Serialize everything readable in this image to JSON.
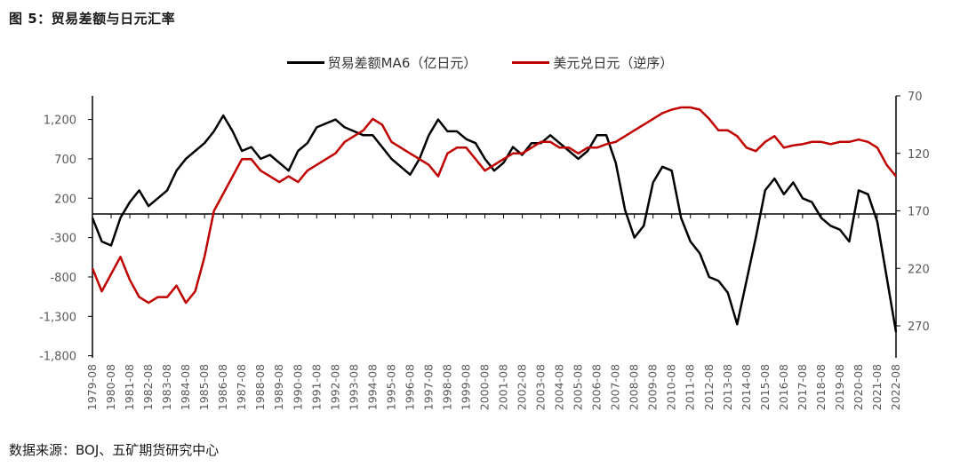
{
  "title": "图 5：贸易差额与日元汇率",
  "source": "数据来源：BOJ、五矿期货研究中心",
  "legend": [
    {
      "label": "贸易差额MA6（亿日元）",
      "color": "#000000"
    },
    {
      "label": "美元兑日元（逆序）",
      "color": "#c00000"
    }
  ],
  "chart_data": {
    "type": "line",
    "title": "图 5：贸易差额与日元汇率",
    "xlabel": "",
    "ylabel_left": "贸易差额MA6（亿日元）",
    "ylabel_right": "美元兑日元（逆序）",
    "left_axis": {
      "ticks": [
        1200,
        700,
        200,
        -300,
        -800,
        -1300,
        -1800
      ],
      "tick_labels": [
        "1,200",
        "700",
        "200",
        "-300",
        "-800",
        "-1,300",
        "-1,800"
      ],
      "range": [
        -1800,
        1500
      ]
    },
    "right_axis": {
      "ticks": [
        70,
        120,
        170,
        220,
        270
      ],
      "tick_labels": [
        "70",
        "120",
        "170",
        "220",
        "270"
      ],
      "range": [
        70,
        300
      ],
      "inverted": true
    },
    "categories": [
      "1979-08",
      "1980-08",
      "1981-08",
      "1982-08",
      "1983-08",
      "1984-08",
      "1985-08",
      "1986-08",
      "1987-08",
      "1988-08",
      "1989-08",
      "1990-08",
      "1991-08",
      "1992-08",
      "1993-08",
      "1994-08",
      "1995-08",
      "1996-08",
      "1997-08",
      "1998-08",
      "1999-08",
      "2000-08",
      "2001-08",
      "2002-08",
      "2003-08",
      "2004-08",
      "2005-08",
      "2006-08",
      "2007-08",
      "2008-08",
      "2009-08",
      "2010-08",
      "2011-08",
      "2012-08",
      "2013-08",
      "2014-08",
      "2015-08",
      "2016-08",
      "2017-08",
      "2018-08",
      "2019-08",
      "2020-08",
      "2021-08",
      "2022-08"
    ],
    "x": [
      1979.6,
      1980.1,
      1980.6,
      1981.1,
      1981.6,
      1982.1,
      1982.6,
      1983.1,
      1983.6,
      1984.1,
      1984.6,
      1985.1,
      1985.6,
      1986.1,
      1986.6,
      1987.1,
      1987.6,
      1988.1,
      1988.6,
      1989.1,
      1989.6,
      1990.1,
      1990.6,
      1991.1,
      1991.6,
      1992.1,
      1992.6,
      1993.1,
      1993.6,
      1994.1,
      1994.6,
      1995.1,
      1995.6,
      1996.1,
      1996.6,
      1997.1,
      1997.6,
      1998.1,
      1998.6,
      1999.1,
      1999.6,
      2000.1,
      2000.6,
      2001.1,
      2001.6,
      2002.1,
      2002.6,
      2003.1,
      2003.6,
      2004.1,
      2004.6,
      2005.1,
      2005.6,
      2006.1,
      2006.6,
      2007.1,
      2007.6,
      2008.1,
      2008.6,
      2009.1,
      2009.6,
      2010.1,
      2010.6,
      2011.1,
      2011.6,
      2012.1,
      2012.6,
      2013.1,
      2013.6,
      2014.1,
      2014.6,
      2015.1,
      2015.6,
      2016.1,
      2016.6,
      2017.1,
      2017.6,
      2018.1,
      2018.6,
      2019.1,
      2019.6,
      2020.1,
      2020.6,
      2021.1,
      2021.6,
      2022.1,
      2022.6
    ],
    "series": [
      {
        "name": "贸易差额MA6（亿日元）",
        "axis": "left",
        "color": "#000000",
        "values": [
          -50,
          -350,
          -400,
          -50,
          150,
          300,
          100,
          200,
          300,
          550,
          700,
          800,
          900,
          1050,
          1250,
          1050,
          800,
          850,
          700,
          750,
          650,
          550,
          800,
          900,
          1100,
          1150,
          1200,
          1100,
          1050,
          1000,
          1000,
          850,
          700,
          600,
          500,
          700,
          1000,
          1200,
          1050,
          1050,
          950,
          900,
          700,
          550,
          650,
          850,
          750,
          900,
          900,
          1000,
          900,
          800,
          700,
          800,
          1000,
          1000,
          650,
          50,
          -300,
          -150,
          400,
          600,
          550,
          -50,
          -350,
          -500,
          -800,
          -850,
          -1000,
          -1400,
          -850,
          -300,
          300,
          450,
          250,
          400,
          200,
          150,
          -50,
          -150,
          -200,
          -350,
          300,
          250,
          -100,
          -800,
          -1500
        ]
      },
      {
        "name": "美元兑日元（逆序）",
        "axis": "right",
        "color": "#c00000",
        "values": [
          220,
          240,
          225,
          210,
          230,
          245,
          250,
          245,
          245,
          235,
          250,
          240,
          210,
          170,
          155,
          140,
          125,
          125,
          135,
          140,
          145,
          140,
          145,
          135,
          130,
          125,
          120,
          110,
          105,
          100,
          90,
          95,
          110,
          115,
          120,
          125,
          130,
          140,
          120,
          115,
          115,
          125,
          135,
          130,
          125,
          120,
          120,
          115,
          110,
          110,
          115,
          115,
          120,
          115,
          115,
          112,
          110,
          105,
          100,
          95,
          90,
          85,
          82,
          80,
          80,
          82,
          90,
          100,
          100,
          105,
          115,
          118,
          110,
          105,
          115,
          113,
          112,
          110,
          110,
          112,
          110,
          110,
          108,
          110,
          115,
          130,
          140
        ]
      }
    ],
    "annotations": [
      {
        "type": "hline",
        "axis": "left",
        "value": 0
      }
    ],
    "grid": false,
    "legend_position": "top"
  }
}
